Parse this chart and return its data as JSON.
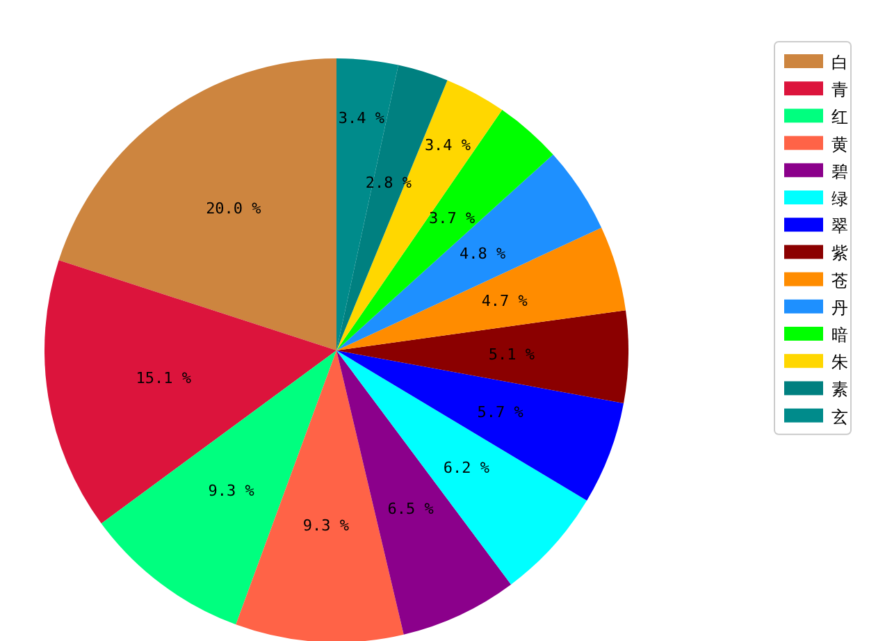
{
  "chart_data": {
    "type": "pie",
    "legend": "top right",
    "categories": [
      "白",
      "青",
      "红",
      "黄",
      "碧",
      "绿",
      "翠",
      "紫",
      "苍",
      "丹",
      "暗",
      "朱",
      "素",
      "玄"
    ],
    "values": [
      20.0,
      15.1,
      9.3,
      9.3,
      6.5,
      6.2,
      5.7,
      5.1,
      4.7,
      4.8,
      3.7,
      3.4,
      2.8,
      3.4
    ],
    "value_labels": [
      "20.0 %",
      "15.1 %",
      "9.3 %",
      "9.3 %",
      "6.5 %",
      "6.2 %",
      "5.7 %",
      "5.1 %",
      "4.7 %",
      "4.8 %",
      "3.7 %",
      "3.4 %",
      "2.8 %",
      "3.4 %"
    ],
    "colors": [
      "#cd853f",
      "#dc143c",
      "#00ff7f",
      "#ff6347",
      "#8b008b",
      "#00ffff",
      "#0000ff",
      "#8b0000",
      "#ff8c00",
      "#1e90ff",
      "#00ff00",
      "#ffd700",
      "#008080",
      "#008b8b"
    ]
  }
}
